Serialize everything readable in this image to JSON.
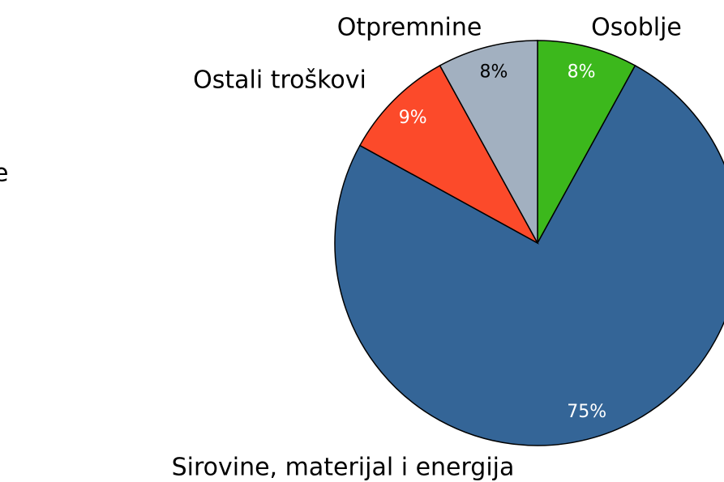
{
  "chart_data": {
    "type": "pie",
    "annotation": "e",
    "categories": [
      "Osoblje",
      "Sirovine, materijal i energija",
      "Ostali troškovi",
      "Otpremnine"
    ],
    "values": [
      8,
      75,
      9,
      8
    ],
    "value_labels": [
      "8%",
      "75%",
      "9%",
      "8%"
    ],
    "colors": [
      "#3cb81c",
      "#346597",
      "#fc4a2a",
      "#a2b0c0"
    ]
  }
}
